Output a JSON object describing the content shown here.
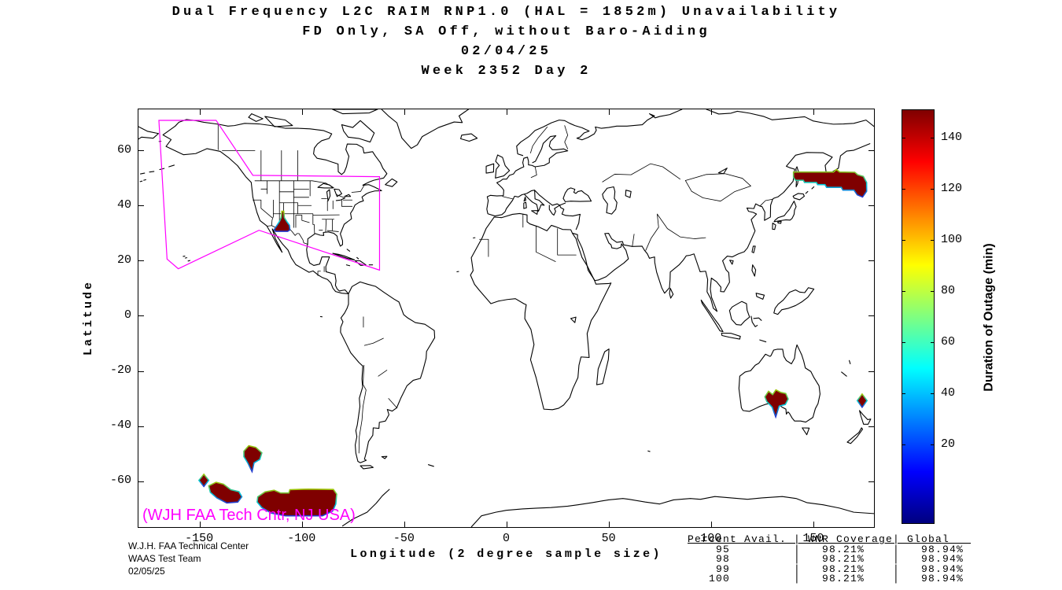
{
  "title": {
    "lines": [
      "Dual Frequency L2C RAIM RNP1.0 (HAL = 1852m) Unavailability",
      "FD Only, SA Off, without Baro-Aiding",
      "02/04/25",
      "Week 2352 Day 2"
    ]
  },
  "annotation": {
    "text": "(WJH FAA Tech Cntr, NJ USA)",
    "color": "#ff00ff"
  },
  "footer": {
    "lines": [
      "W.J.H. FAA Technical Center",
      "WAAS Test Team",
      "02/05/25"
    ]
  },
  "stats_table": {
    "header": "Percent Avail. | WNR Coverage| Global   ",
    "columns": [
      "Percent Avail.",
      "WNR Coverage",
      "Global"
    ],
    "rows": [
      {
        "percent": "95",
        "wnr": "98.21%",
        "global": "98.94%"
      },
      {
        "percent": "98",
        "wnr": "98.21%",
        "global": "98.94%"
      },
      {
        "percent": "99",
        "wnr": "98.21%",
        "global": "98.94%"
      },
      {
        "percent": "100",
        "wnr": "98.21%",
        "global": "98.94%"
      }
    ]
  },
  "chart_data": {
    "type": "heatmap",
    "title": "Dual Frequency L2C RAIM RNP1.0 (HAL = 1852m) Unavailability, FD Only, SA Off, without Baro-Aiding, 02/04/25, Week 2352 Day 2",
    "xlabel": "Longitude (2 degree sample size)",
    "ylabel": "Latitude",
    "xlim": [
      -180,
      180
    ],
    "ylim": [
      -77,
      75
    ],
    "x_ticks": [
      -150,
      -100,
      -50,
      0,
      50,
      100,
      150
    ],
    "y_ticks": [
      60,
      40,
      20,
      0,
      -20,
      -40,
      -60
    ],
    "grid": false,
    "colorbar": {
      "label": "Duration of Outage (min)",
      "ticks": [
        20,
        40,
        60,
        80,
        100,
        120,
        140
      ],
      "value_range": [
        0,
        150
      ],
      "colormap": "jet"
    },
    "colors": {
      "outage_fill": "#7f0000",
      "fringe_top": "#9fc400",
      "fringe_mid": "#00c8dc",
      "fringe_bottom": "#2233cc",
      "boundary": "#ff00ff",
      "coastline": "#000000"
    },
    "waas_boundary_polygon_lonlat": [
      [
        -170,
        71
      ],
      [
        -142,
        71
      ],
      [
        -124,
        51
      ],
      [
        -62,
        50.5
      ],
      [
        -62,
        16.5
      ],
      [
        -121,
        31
      ],
      [
        -160.5,
        17
      ],
      [
        -166,
        20.5
      ]
    ],
    "outage_regions": [
      {
        "name": "southwest-us",
        "approx_center_lonlat": [
          -110,
          34
        ],
        "duration_min": 150,
        "polygon_lonlat": [
          [
            -109.8,
            37.9
          ],
          [
            -108.9,
            37.9
          ],
          [
            -108.6,
            35.6
          ],
          [
            -107.4,
            34.2
          ],
          [
            -106.1,
            32.8
          ],
          [
            -105.9,
            31.1
          ],
          [
            -107,
            30.6
          ],
          [
            -112.9,
            30.6
          ],
          [
            -113.6,
            31.2
          ],
          [
            -112.1,
            32.9
          ],
          [
            -110.9,
            34.3
          ],
          [
            -110.1,
            35.7
          ]
        ]
      },
      {
        "name": "nw-pacific-okhotsk",
        "approx_center_lonlat": [
          160,
          48
        ],
        "duration_min": 150,
        "polygon_lonlat": [
          [
            140.6,
            52.2
          ],
          [
            160.2,
            52.2
          ],
          [
            161.6,
            53.1
          ],
          [
            163.2,
            52.2
          ],
          [
            170.6,
            52.1
          ],
          [
            172,
            51.2
          ],
          [
            174.8,
            50.6
          ],
          [
            176.4,
            48.4
          ],
          [
            176.4,
            45.2
          ],
          [
            174.4,
            43.1
          ],
          [
            171.8,
            43.9
          ],
          [
            170.2,
            45.6
          ],
          [
            164.8,
            45.6
          ],
          [
            164,
            46.6
          ],
          [
            156.8,
            46.6
          ],
          [
            156,
            47.6
          ],
          [
            152.4,
            47.6
          ],
          [
            151.8,
            48.4
          ],
          [
            146,
            48.4
          ],
          [
            145.4,
            49.2
          ],
          [
            141.6,
            49.2
          ],
          [
            140.6,
            50.2
          ]
        ]
      },
      {
        "name": "south-australia",
        "approx_center_lonlat": [
          132,
          -30
        ],
        "duration_min": 150,
        "polygon_lonlat": [
          [
            126.6,
            -29.6
          ],
          [
            128.4,
            -27.6
          ],
          [
            130.4,
            -28.8
          ],
          [
            132,
            -27.1
          ],
          [
            134.4,
            -28
          ],
          [
            136.8,
            -28.4
          ],
          [
            138,
            -30.4
          ],
          [
            136.6,
            -32.4
          ],
          [
            133.6,
            -33
          ],
          [
            131.9,
            -36.9
          ],
          [
            130.2,
            -33.4
          ],
          [
            127.6,
            -31.4
          ]
        ]
      },
      {
        "name": "tasman-sea-east",
        "approx_center_lonlat": [
          174,
          -31
        ],
        "duration_min": 150,
        "polygon_lonlat": [
          [
            174.2,
            -28.6
          ],
          [
            176.6,
            -31
          ],
          [
            174.2,
            -33.4
          ],
          [
            171.8,
            -31
          ]
        ]
      },
      {
        "name": "south-pacific-a",
        "approx_center_lonlat": [
          -124,
          -51
        ],
        "duration_min": 150,
        "polygon_lonlat": [
          [
            -128.4,
            -49.4
          ],
          [
            -126,
            -47.4
          ],
          [
            -122.6,
            -48
          ],
          [
            -119.6,
            -50
          ],
          [
            -120.6,
            -52.4
          ],
          [
            -123.4,
            -53.6
          ],
          [
            -124.4,
            -56.8
          ],
          [
            -126.4,
            -53.8
          ],
          [
            -128.4,
            -51.4
          ]
        ]
      },
      {
        "name": "south-pacific-b",
        "approx_center_lonlat": [
          -148,
          -60
        ],
        "duration_min": 150,
        "polygon_lonlat": [
          [
            -148,
            -57.8
          ],
          [
            -145.6,
            -60
          ],
          [
            -148,
            -62.2
          ],
          [
            -150.4,
            -60
          ]
        ]
      },
      {
        "name": "south-pacific-c",
        "approx_center_lonlat": [
          -137,
          -64
        ],
        "duration_min": 150,
        "polygon_lonlat": [
          [
            -145.6,
            -62
          ],
          [
            -142,
            -60.7
          ],
          [
            -138.4,
            -61.4
          ],
          [
            -134.8,
            -63.4
          ],
          [
            -130.8,
            -64.1
          ],
          [
            -129.4,
            -66
          ],
          [
            -131.4,
            -67.9
          ],
          [
            -136.8,
            -68.2
          ],
          [
            -141.6,
            -66.4
          ],
          [
            -144.8,
            -64.4
          ]
        ]
      },
      {
        "name": "south-pacific-d",
        "approx_center_lonlat": [
          -102,
          -68
        ],
        "duration_min": 150,
        "polygon_lonlat": [
          [
            -121.6,
            -66
          ],
          [
            -118,
            -64.2
          ],
          [
            -113.6,
            -63.6
          ],
          [
            -110.4,
            -64.6
          ],
          [
            -106.4,
            -64.6
          ],
          [
            -105.9,
            -63.4
          ],
          [
            -97,
            -63.2
          ],
          [
            -84.6,
            -63.3
          ],
          [
            -83,
            -65
          ],
          [
            -83.4,
            -68.6
          ],
          [
            -85,
            -71.2
          ],
          [
            -90,
            -72.9
          ],
          [
            -108,
            -72.9
          ],
          [
            -115,
            -71.9
          ],
          [
            -119.6,
            -69.9
          ],
          [
            -121.9,
            -67.9
          ]
        ]
      }
    ],
    "availability_summary": {
      "columns": [
        "Percent Avail.",
        "WNR Coverage",
        "Global"
      ],
      "rows": [
        [
          95,
          "98.21%",
          "98.94%"
        ],
        [
          98,
          "98.21%",
          "98.94%"
        ],
        [
          99,
          "98.21%",
          "98.94%"
        ],
        [
          100,
          "98.21%",
          "98.94%"
        ]
      ]
    }
  }
}
